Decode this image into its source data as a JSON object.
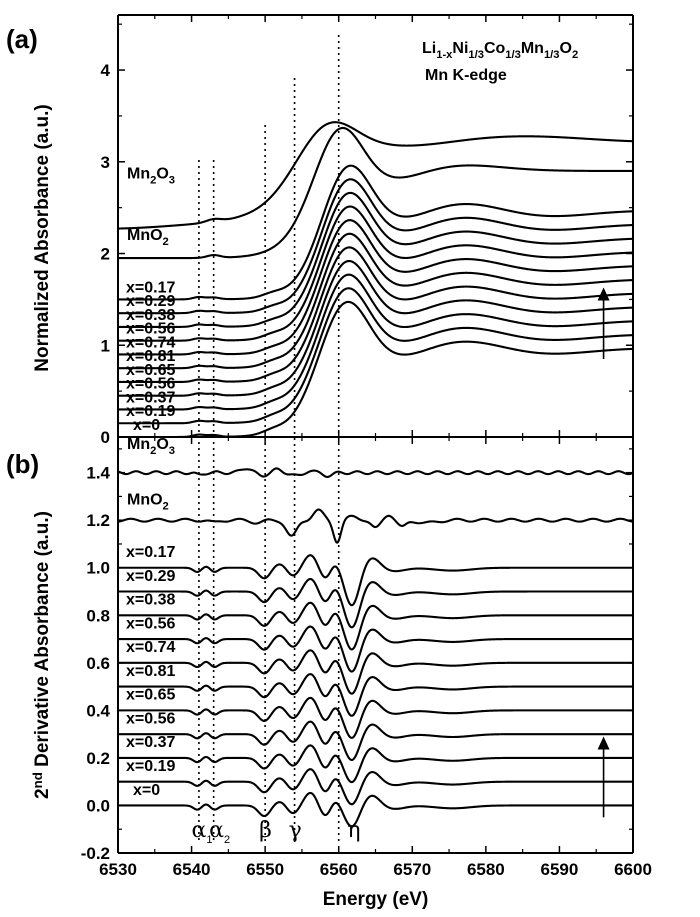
{
  "chart_data": [
    {
      "panel": "(a)",
      "type": "line",
      "title_formula": {
        "parts": [
          [
            "Li",
            ""
          ],
          [
            "1-x",
            "sub"
          ],
          [
            "Ni",
            ""
          ],
          [
            "1/3",
            "sub"
          ],
          [
            "Co",
            ""
          ],
          [
            "1/3",
            "sub"
          ],
          [
            "Mn",
            ""
          ],
          [
            "1/3",
            "sub"
          ],
          [
            "O",
            ""
          ],
          [
            "2",
            "sub"
          ]
        ]
      },
      "title_line2": "Mn K-edge",
      "ylabel": "Normalized Absorbance (a.u.)",
      "ylim": [
        0,
        4.6
      ],
      "yticks": [
        0,
        1,
        2,
        3,
        4
      ],
      "ytick_labels": [
        "0",
        "1",
        "2",
        "3",
        "4"
      ],
      "xlim": [
        6530,
        6600
      ],
      "reference_lines_eV": [
        6541,
        6543,
        6550,
        6554,
        6560
      ],
      "arrow": {
        "x_eV": 6596,
        "from_y": 0.85,
        "to_y": 1.63
      },
      "series": [
        {
          "name": "x=0",
          "offset": 0.0
        },
        {
          "name": "x=0.19",
          "offset": 0.15
        },
        {
          "name": "x=0.37",
          "offset": 0.3
        },
        {
          "name": "x=0.56",
          "offset": 0.45
        },
        {
          "name": "x=0.65",
          "offset": 0.6
        },
        {
          "name": "x=0.81",
          "offset": 0.75
        },
        {
          "name": "x=0.74",
          "offset": 0.9
        },
        {
          "name": "x=0.56",
          "offset": 1.05
        },
        {
          "name": "x=0.38",
          "offset": 1.2
        },
        {
          "name": "x=0.29",
          "offset": 1.35
        },
        {
          "name": "x=0.17",
          "offset": 1.5
        },
        {
          "name": "MnO2",
          "label_parts": [
            [
              "MnO",
              ""
            ],
            [
              "2",
              "sub"
            ]
          ],
          "offset": 1.95
        },
        {
          "name": "Mn2O3",
          "label_parts": [
            [
              "Mn",
              ""
            ],
            [
              "2",
              "sub"
            ],
            [
              "O",
              ""
            ],
            [
              "3",
              "sub"
            ]
          ],
          "offset": 2.3
        }
      ]
    },
    {
      "panel": "(b)",
      "type": "line",
      "ylabel_parts": [
        [
          "2",
          ""
        ],
        [
          "nd",
          "sup"
        ],
        [
          " Derivative Absorbance (a.u.)",
          ""
        ]
      ],
      "ylim": [
        -0.2,
        1.55
      ],
      "yticks": [
        -0.2,
        0.0,
        0.2,
        0.4,
        0.6,
        0.8,
        1.0,
        1.2,
        1.4
      ],
      "ytick_labels": [
        "-0.2",
        "0.0",
        "0.2",
        "0.4",
        "0.6",
        "0.8",
        "1.0",
        "1.2",
        "1.4"
      ],
      "xlim": [
        6530,
        6600
      ],
      "xticks": [
        6530,
        6540,
        6550,
        6560,
        6570,
        6580,
        6590,
        6600
      ],
      "xtick_labels": [
        "6530",
        "6540",
        "6550",
        "6560",
        "6570",
        "6580",
        "6590",
        "6600"
      ],
      "xlabel": "Energy (eV)",
      "feature_labels": [
        {
          "text": "α",
          "sub": "1",
          "x_eV": 6540.8
        },
        {
          "text": "α",
          "sub": "2",
          "x_eV": 6543.2
        },
        {
          "text": "β",
          "sub": "",
          "x_eV": 6550
        },
        {
          "text": "γ",
          "sub": "",
          "x_eV": 6554
        },
        {
          "text": "η",
          "sub": "",
          "x_eV": 6562
        }
      ],
      "arrow": {
        "x_eV": 6596,
        "from_y": -0.05,
        "to_y": 0.29
      },
      "series": [
        {
          "name": "x=0",
          "offset": 0.0
        },
        {
          "name": "x=0.19",
          "offset": 0.1
        },
        {
          "name": "x=0.37",
          "offset": 0.2
        },
        {
          "name": "x=0.56",
          "offset": 0.3
        },
        {
          "name": "x=0.65",
          "offset": 0.4
        },
        {
          "name": "x=0.81",
          "offset": 0.5
        },
        {
          "name": "x=0.74",
          "offset": 0.6
        },
        {
          "name": "x=0.56",
          "offset": 0.7
        },
        {
          "name": "x=0.38",
          "offset": 0.8
        },
        {
          "name": "x=0.29",
          "offset": 0.9
        },
        {
          "name": "x=0.17",
          "offset": 1.0
        },
        {
          "name": "MnO2",
          "label_parts": [
            [
              "MnO",
              ""
            ],
            [
              "2",
              "sub"
            ]
          ],
          "offset": 1.2
        },
        {
          "name": "Mn2O3",
          "label_parts": [
            [
              "Mn",
              ""
            ],
            [
              "2",
              "sub"
            ],
            [
              "O",
              ""
            ],
            [
              "3",
              "sub"
            ]
          ],
          "offset": 1.4
        }
      ]
    }
  ]
}
